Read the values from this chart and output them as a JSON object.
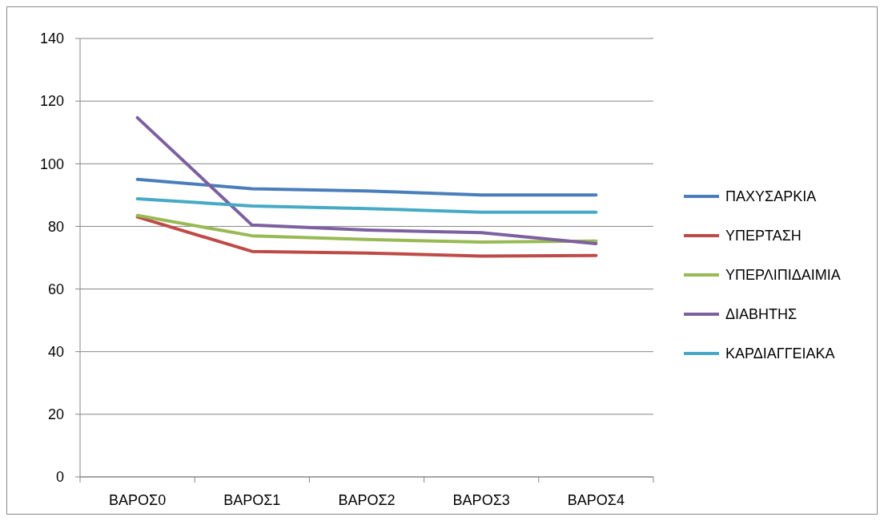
{
  "chart_data": {
    "type": "line",
    "categories": [
      "ΒΑΡΟΣ0",
      "ΒΑΡΟΣ1",
      "ΒΑΡΟΣ2",
      "ΒΑΡΟΣ3",
      "ΒΑΡΟΣ4"
    ],
    "series": [
      {
        "name": "ΠΑΧΥΣΑΡΚΙΑ",
        "color": "#4a7ebb",
        "values": [
          95,
          92,
          91.3,
          90,
          90
        ]
      },
      {
        "name": "ΥΠΕΡΤΑΣΗ",
        "color": "#be4b48",
        "values": [
          83,
          72,
          71.5,
          70.5,
          70.7
        ]
      },
      {
        "name": "ΥΠΕΡΛΙΠΙΔΑΙΜΙΑ",
        "color": "#98b954",
        "values": [
          83.5,
          77,
          75.8,
          75,
          75.3
        ]
      },
      {
        "name": "ΔΙΑΒΗΤΗΣ",
        "color": "#7d60a0",
        "values": [
          114.7,
          80.4,
          78.8,
          78,
          74.5
        ]
      },
      {
        "name": "ΚΑΡΔΙΑΓΓΕΙΑΚΑ",
        "color": "#46aac5",
        "values": [
          88.8,
          86.5,
          85.7,
          84.5,
          84.5
        ]
      }
    ],
    "ylim": [
      0,
      140
    ],
    "yticks": [
      0,
      20,
      40,
      60,
      80,
      100,
      120,
      140
    ],
    "grid": "y",
    "legend": "right",
    "marker": "none",
    "line_style": "solid"
  }
}
